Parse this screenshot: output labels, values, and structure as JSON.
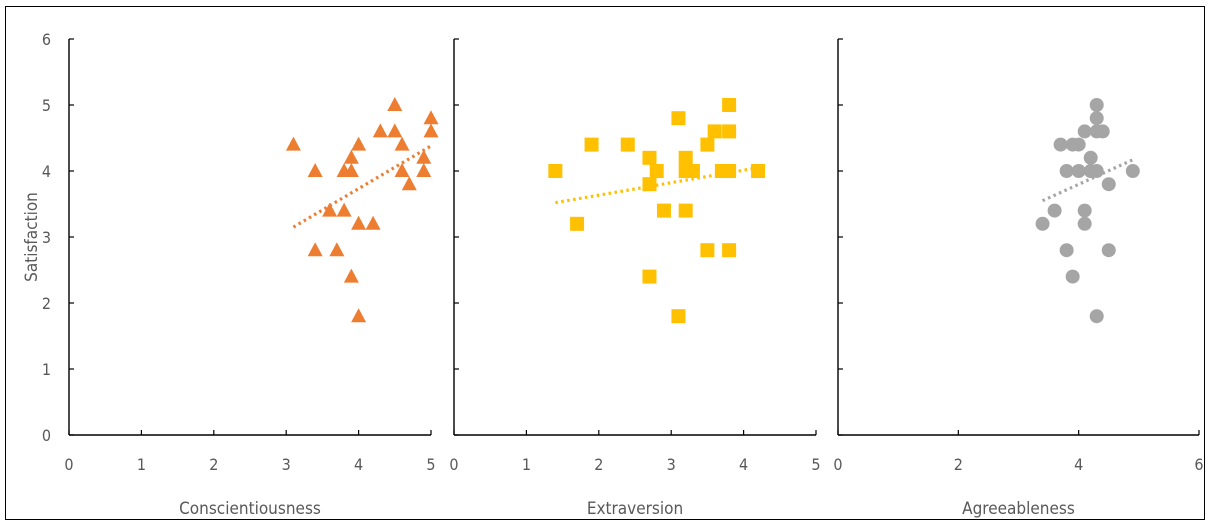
{
  "figure": {
    "ylabel": "Satisfaction"
  },
  "chart_data": [
    {
      "type": "scatter",
      "xlabel": "Conscientiousness",
      "ylabel": "Satisfaction",
      "xlim": [
        0,
        5
      ],
      "ylim": [
        0,
        6
      ],
      "xticks": [
        0,
        1,
        2,
        3,
        4,
        5
      ],
      "yticks": [
        0,
        1,
        2,
        3,
        4,
        5,
        6
      ],
      "marker": "triangle",
      "color": "#ED7D31",
      "trendline": "linear, dotted",
      "points": [
        [
          3.1,
          4.4
        ],
        [
          3.4,
          4.0
        ],
        [
          3.4,
          2.8
        ],
        [
          3.6,
          3.4
        ],
        [
          3.7,
          2.8
        ],
        [
          3.8,
          3.4
        ],
        [
          3.8,
          4.0
        ],
        [
          3.9,
          4.0
        ],
        [
          3.9,
          4.2
        ],
        [
          3.9,
          2.4
        ],
        [
          4.0,
          4.4
        ],
        [
          4.0,
          3.2
        ],
        [
          4.0,
          1.8
        ],
        [
          4.2,
          3.2
        ],
        [
          4.3,
          4.6
        ],
        [
          4.5,
          5.0
        ],
        [
          4.5,
          4.6
        ],
        [
          4.6,
          4.4
        ],
        [
          4.6,
          4.0
        ],
        [
          4.7,
          3.8
        ],
        [
          4.9,
          4.2
        ],
        [
          4.9,
          4.0
        ],
        [
          5.0,
          4.8
        ],
        [
          5.0,
          4.6
        ]
      ],
      "trend": [
        [
          3.1,
          3.15
        ],
        [
          5.0,
          4.38
        ]
      ]
    },
    {
      "type": "scatter",
      "xlabel": "Extraversion",
      "ylabel": "",
      "xlim": [
        0,
        5
      ],
      "ylim": [
        0,
        6
      ],
      "xticks": [
        0,
        1,
        2,
        3,
        4,
        5
      ],
      "yticks": [
        0,
        1,
        2,
        3,
        4,
        5,
        6
      ],
      "marker": "square",
      "color": "#FFC000",
      "trendline": "linear, dotted",
      "points": [
        [
          1.4,
          4.0
        ],
        [
          1.7,
          3.2
        ],
        [
          1.9,
          4.4
        ],
        [
          2.4,
          4.4
        ],
        [
          2.7,
          4.2
        ],
        [
          2.7,
          3.8
        ],
        [
          2.7,
          2.4
        ],
        [
          2.8,
          4.0
        ],
        [
          2.9,
          3.4
        ],
        [
          3.1,
          4.8
        ],
        [
          3.1,
          1.8
        ],
        [
          3.2,
          4.2
        ],
        [
          3.2,
          4.0
        ],
        [
          3.2,
          3.4
        ],
        [
          3.3,
          4.0
        ],
        [
          3.5,
          4.4
        ],
        [
          3.5,
          2.8
        ],
        [
          3.6,
          4.6
        ],
        [
          3.7,
          4.0
        ],
        [
          3.8,
          5.0
        ],
        [
          3.8,
          4.6
        ],
        [
          3.8,
          4.0
        ],
        [
          3.8,
          2.8
        ],
        [
          4.2,
          4.0
        ]
      ],
      "trend": [
        [
          1.4,
          3.52
        ],
        [
          4.2,
          4.05
        ]
      ]
    },
    {
      "type": "scatter",
      "xlabel": "Agreeableness",
      "ylabel": "",
      "xlim": [
        0,
        6
      ],
      "ylim": [
        0,
        6
      ],
      "xticks": [
        0,
        2,
        4,
        6
      ],
      "yticks": [
        0,
        1,
        2,
        3,
        4,
        5,
        6
      ],
      "marker": "circle",
      "color": "#A5A5A5",
      "trendline": "linear, dotted",
      "points": [
        [
          3.4,
          3.2
        ],
        [
          3.6,
          3.4
        ],
        [
          3.7,
          4.4
        ],
        [
          3.8,
          4.0
        ],
        [
          3.8,
          2.8
        ],
        [
          3.9,
          4.4
        ],
        [
          3.9,
          2.4
        ],
        [
          4.0,
          4.4
        ],
        [
          4.0,
          4.0
        ],
        [
          4.1,
          4.6
        ],
        [
          4.1,
          3.4
        ],
        [
          4.1,
          3.2
        ],
        [
          4.2,
          4.2
        ],
        [
          4.2,
          4.0
        ],
        [
          4.3,
          5.0
        ],
        [
          4.3,
          4.8
        ],
        [
          4.3,
          4.6
        ],
        [
          4.3,
          4.0
        ],
        [
          4.3,
          1.8
        ],
        [
          4.4,
          4.6
        ],
        [
          4.5,
          3.8
        ],
        [
          4.5,
          2.8
        ],
        [
          4.9,
          4.0
        ]
      ],
      "trend": [
        [
          3.4,
          3.55
        ],
        [
          4.9,
          4.17
        ]
      ]
    }
  ]
}
